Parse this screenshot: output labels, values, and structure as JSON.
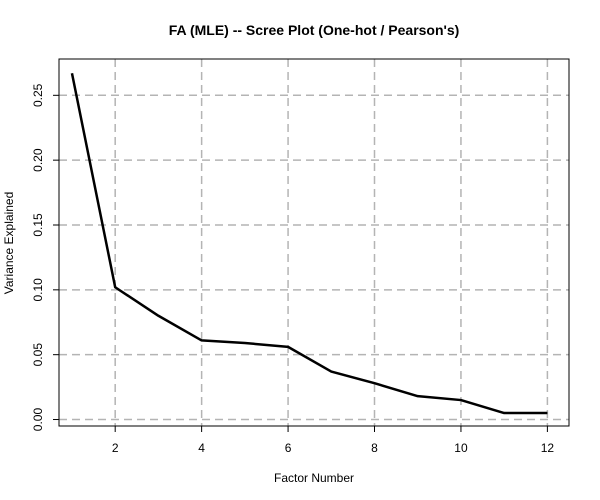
{
  "chart_data": {
    "type": "line",
    "title": "FA (MLE) -- Scree Plot (One-hot / Pearson's)",
    "xlabel": "Factor Number",
    "ylabel": "Variance Explained",
    "x": [
      1,
      2,
      3,
      4,
      5,
      6,
      7,
      8,
      9,
      10,
      11,
      12
    ],
    "series": [
      {
        "values": [
          0.267,
          0.102,
          0.08,
          0.061,
          0.059,
          0.056,
          0.037,
          0.028,
          0.018,
          0.015,
          0.005,
          0.005
        ],
        "color": "#000000"
      }
    ],
    "xlim": [
      0.7,
      12.5
    ],
    "ylim": [
      -0.005,
      0.278
    ],
    "xticks": [
      2,
      4,
      6,
      8,
      10,
      12
    ],
    "yticks": [
      0.0,
      0.05,
      0.1,
      0.15,
      0.2,
      0.25
    ],
    "xtick_labels": [
      "2",
      "4",
      "6",
      "8",
      "10",
      "12"
    ],
    "ytick_labels": [
      "0.00",
      "0.05",
      "0.10",
      "0.15",
      "0.20",
      "0.25"
    ],
    "grid": true,
    "grid_color": "#b4b4b4",
    "line_color": "#000000",
    "legend": "none"
  }
}
